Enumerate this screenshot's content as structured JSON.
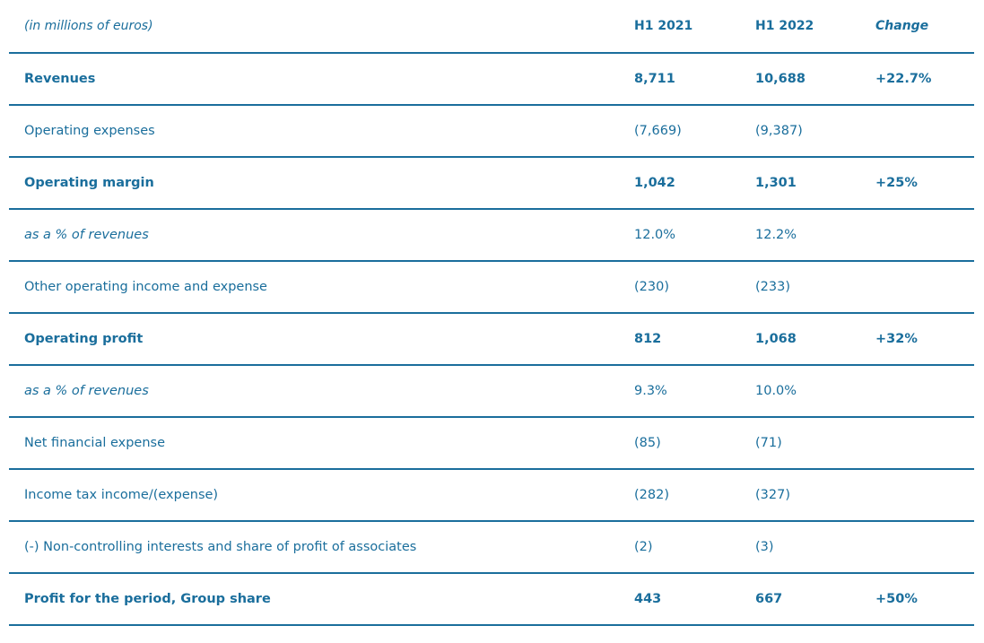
{
  "header": {
    "label": "(in millions of euros)",
    "col1": "H1 2021",
    "col2": "H1 2022",
    "col3": "Change"
  },
  "rows": [
    {
      "label": "Revenues",
      "h1_2021": "8,711",
      "h1_2022": "10,688",
      "change": "+22.7%",
      "style": "bold"
    },
    {
      "label": "Operating expenses",
      "h1_2021": "(7,669)",
      "h1_2022": "(9,387)",
      "change": "",
      "style": "normal"
    },
    {
      "label": "Operating margin",
      "h1_2021": "1,042",
      "h1_2022": "1,301",
      "change": "+25%",
      "style": "bold"
    },
    {
      "label": "as a % of revenues",
      "h1_2021": "12.0%",
      "h1_2022": "12.2%",
      "change": "",
      "style": "italic"
    },
    {
      "label": "Other operating income and expense",
      "h1_2021": "(230)",
      "h1_2022": "(233)",
      "change": "",
      "style": "normal"
    },
    {
      "label": "Operating profit",
      "h1_2021": "812",
      "h1_2022": "1,068",
      "change": "+32%",
      "style": "bold"
    },
    {
      "label": "as a % of revenues",
      "h1_2021": "9.3%",
      "h1_2022": "10.0%",
      "change": "",
      "style": "italic"
    },
    {
      "label": "Net financial expense",
      "h1_2021": "(85)",
      "h1_2022": "(71)",
      "change": "",
      "style": "normal"
    },
    {
      "label": "Income tax income/(expense)",
      "h1_2021": "(282)",
      "h1_2022": "(327)",
      "change": "",
      "style": "normal"
    },
    {
      "label": "(-) Non-controlling interests and share of profit of associates",
      "h1_2021": "(2)",
      "h1_2022": "(3)",
      "change": "",
      "style": "normal"
    },
    {
      "label": "Profit for the period, Group share",
      "h1_2021": "443",
      "h1_2022": "667",
      "change": "+50%",
      "style": "bold"
    }
  ]
}
